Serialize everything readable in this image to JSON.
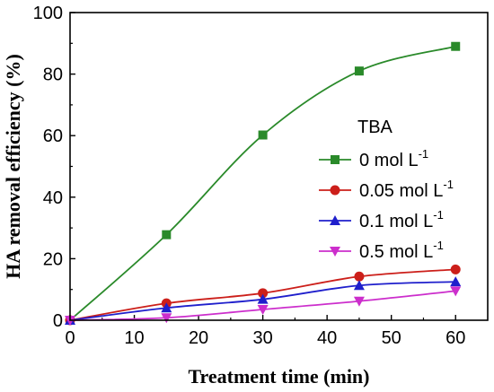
{
  "chart_data": {
    "type": "line",
    "title": "",
    "xlabel": "Treatment time (min)",
    "ylabel": "HA removal efficiency (%)",
    "xlim": [
      0,
      65
    ],
    "ylim": [
      0,
      100
    ],
    "xticks": [
      0,
      10,
      20,
      30,
      40,
      50,
      60
    ],
    "yticks": [
      0,
      20,
      40,
      60,
      80,
      100
    ],
    "grid": false,
    "legend": {
      "title": "TBA",
      "position": "right"
    },
    "x": [
      0,
      15,
      30,
      45,
      60
    ],
    "series": [
      {
        "name": "0 mol L",
        "sup": "-1",
        "color": "#2a8a2a",
        "marker": "square",
        "values": [
          0,
          27.8,
          60.2,
          81.0,
          89.0
        ]
      },
      {
        "name": "0.05 mol L",
        "sup": "-1",
        "color": "#cc1f1a",
        "marker": "circle",
        "values": [
          0,
          5.5,
          8.8,
          14.2,
          16.5
        ]
      },
      {
        "name": "0.1 mol L",
        "sup": "-1",
        "color": "#1f1fcc",
        "marker": "triangle-up",
        "values": [
          0,
          4.0,
          6.8,
          11.3,
          12.5
        ]
      },
      {
        "name": "0.5 mol L",
        "sup": "-1",
        "color": "#cc2ecc",
        "marker": "triangle-down",
        "values": [
          0,
          0.8,
          3.5,
          6.2,
          9.5
        ]
      }
    ]
  }
}
